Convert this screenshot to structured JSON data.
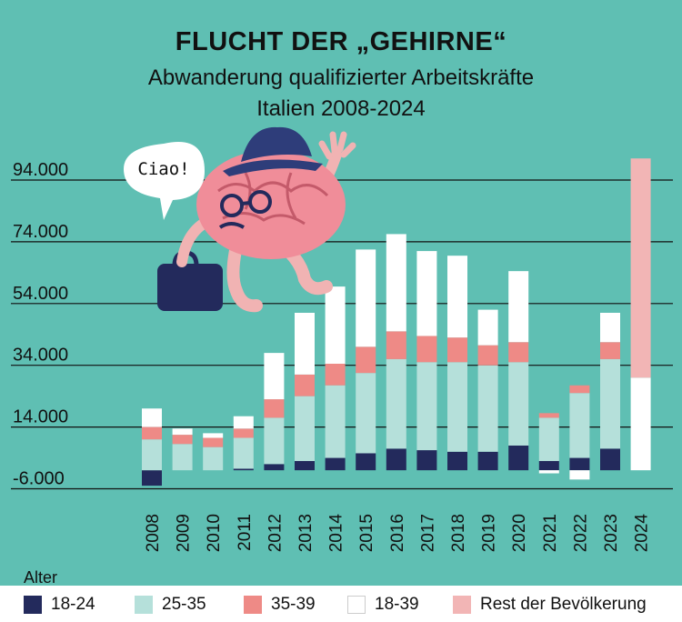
{
  "title": "FLUCHT DER „GEHIRNE“",
  "subtitle": "Abwanderung qualifizierter Arbeitskräfte",
  "subtitle2": "Italien 2008-2024",
  "speech": "Ciao!",
  "legend_title": "Alter",
  "colors": {
    "background": "#5fbfb3",
    "18-24": "#232a5c",
    "25-35": "#b5e0da",
    "35-39": "#ee8a86",
    "18-39": "#ffffff",
    "rest": "#f2b5b5"
  },
  "chart_data": {
    "type": "bar",
    "stacked": true,
    "categories": [
      "2008",
      "2009",
      "2010",
      "2011",
      "2012",
      "2013",
      "2014",
      "2015",
      "2016",
      "2017",
      "2018",
      "2019",
      "2020",
      "2021",
      "2022",
      "2023",
      "2024"
    ],
    "series": [
      {
        "name": "18-24",
        "values": [
          -5000,
          0,
          0,
          500,
          2000,
          3000,
          4000,
          5500,
          7000,
          6500,
          6000,
          6000,
          8000,
          3000,
          4000,
          7000,
          0
        ]
      },
      {
        "name": "25-35",
        "values": [
          10000,
          8500,
          7500,
          10000,
          15000,
          21000,
          23500,
          26000,
          29000,
          28500,
          29000,
          28000,
          27000,
          14000,
          21000,
          29000,
          0
        ]
      },
      {
        "name": "35-39",
        "values": [
          4000,
          3000,
          3000,
          3000,
          6000,
          7000,
          7000,
          8500,
          9000,
          8500,
          8000,
          6500,
          6500,
          1500,
          2500,
          5500,
          0
        ]
      },
      {
        "name": "18-39",
        "values": [
          6000,
          2000,
          1500,
          4000,
          15000,
          20000,
          25000,
          31500,
          31500,
          27500,
          26500,
          11500,
          23000,
          -1000,
          -3000,
          9500,
          30000
        ]
      },
      {
        "name": "Rest der Bevölkerung",
        "values": [
          0,
          0,
          0,
          0,
          0,
          0,
          0,
          0,
          0,
          0,
          0,
          0,
          0,
          0,
          0,
          0,
          71000
        ]
      }
    ],
    "yticks": [
      "94.000",
      "74.000",
      "54.000",
      "34.000",
      "14.000",
      "-6.000"
    ],
    "ytick_values": [
      94000,
      74000,
      54000,
      34000,
      14000,
      -6000
    ],
    "ylim": [
      -6000,
      103000
    ],
    "grid": true,
    "legend_position": "bottom"
  }
}
